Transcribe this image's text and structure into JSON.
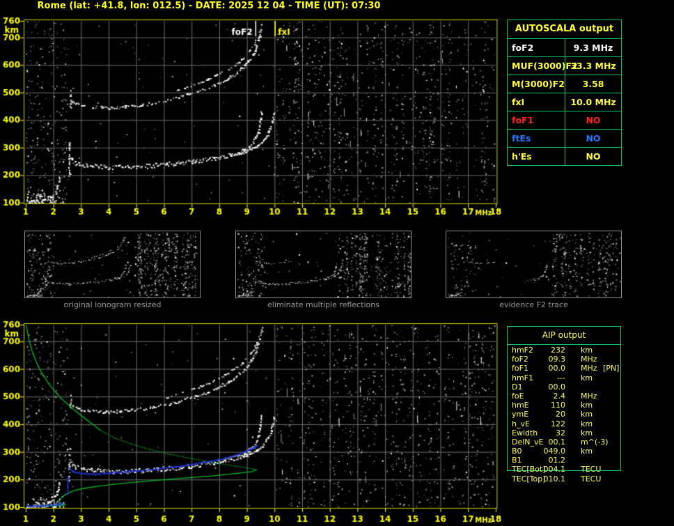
{
  "title": "Rome (lat: +41.8, lon: 012.5) - DATE: 2025 12 04 - TIME (UT): 07:30",
  "colors": {
    "title": "#ffff22",
    "axis_border": "#d8d800",
    "axis_labels": "#ffff00",
    "grid": "#6f6f6f",
    "table_border": "#00cc66",
    "table_yellow": "#ffff44",
    "table_white": "#ffffff",
    "table_red": "#ff2222",
    "table_blue": "#2277ff",
    "aip_text": "#ffff55",
    "profile_green": "#00bb22",
    "restored_blue": "#2233dd",
    "caption_gray": "#9a9a9a",
    "echo_white": "#ffffff"
  },
  "autoscala": {
    "header": "AUTOSCALA output",
    "rows": [
      {
        "label": "foF2",
        "value": "9.3 MHz",
        "color": "#ffffff"
      },
      {
        "label": "MUF(3000)F2",
        "value": "33.3 MHz",
        "color": "#ffff44"
      },
      {
        "label": "M(3000)F2",
        "value": "3.58",
        "color": "#ffff44"
      },
      {
        "label": "fxI",
        "value": "10.0 MHz",
        "color": "#ffff44"
      },
      {
        "label": "foF1",
        "value": "NO",
        "color": "#ff2222"
      },
      {
        "label": "ftEs",
        "value": "NO",
        "color": "#2277ff"
      },
      {
        "label": "h'Es",
        "value": "NO",
        "color": "#ffff44"
      }
    ]
  },
  "aip": {
    "header": "AIP output",
    "rows": [
      {
        "name": "hmF2",
        "value": "232",
        "unit": "km",
        "note": ""
      },
      {
        "name": "foF2",
        "value": "09.3",
        "unit": "MHz",
        "note": ""
      },
      {
        "name": "foF1",
        "value": "00.0",
        "unit": "MHz",
        "note": "[PN]"
      },
      {
        "name": "hmF1",
        "value": "---",
        "unit": "km",
        "note": ""
      },
      {
        "name": "D1",
        "value": "00.0",
        "unit": "",
        "note": ""
      },
      {
        "name": "foE",
        "value": "2.4",
        "unit": "MHz",
        "note": ""
      },
      {
        "name": "hmE",
        "value": "110",
        "unit": "km",
        "note": ""
      },
      {
        "name": "ymE",
        "value": "20",
        "unit": "km",
        "note": ""
      },
      {
        "name": "h_vE",
        "value": "122",
        "unit": "km",
        "note": ""
      },
      {
        "name": "Ewidth",
        "value": "32",
        "unit": "km",
        "note": ""
      },
      {
        "name": "DelN_vE",
        "value": "00.1",
        "unit": "m^(-3)",
        "note": ""
      },
      {
        "name": "B0",
        "value": "049.0",
        "unit": "km",
        "note": ""
      },
      {
        "name": "B1",
        "value": "01.2",
        "unit": "",
        "note": ""
      },
      {
        "name": "TEC[Bot]",
        "value": "004.1",
        "unit": "TECU",
        "note": ""
      },
      {
        "name": "TEC[Top]",
        "value": "010.1",
        "unit": "TECU",
        "note": ""
      }
    ]
  },
  "thumbnails": [
    {
      "caption": "original ionogram resized"
    },
    {
      "caption": "eliminate multiple reflections"
    },
    {
      "caption": "evidence F2 trace"
    }
  ],
  "chart_data": [
    {
      "id": "top-ionogram",
      "type": "scatter",
      "title": "",
      "xlabel": "MHz",
      "ylabel": "km",
      "xlim": [
        1,
        18
      ],
      "ylim": [
        100,
        760
      ],
      "grid": true,
      "xticks": [
        1,
        2,
        3,
        4,
        5,
        6,
        7,
        8,
        9,
        10,
        11,
        12,
        13,
        14,
        15,
        16,
        17,
        18
      ],
      "yticks": [
        100,
        200,
        300,
        400,
        500,
        600,
        700,
        760
      ],
      "markers": [
        {
          "label": "foF2",
          "x": 9.3,
          "color": "#ffffff"
        },
        {
          "label": "fxI",
          "x": 10.0,
          "color": "#ffff00"
        }
      ],
      "echo_traces": [
        {
          "name": "E-region-trace",
          "gap": 0.3,
          "th": 2,
          "points": [
            [
              1.05,
              104
            ],
            [
              1.35,
              108
            ],
            [
              1.65,
              114
            ],
            [
              1.9,
              124
            ],
            [
              2.05,
              140
            ],
            [
              2.15,
              165
            ],
            [
              2.2,
              190
            ]
          ]
        },
        {
          "name": "F-trace-start-spread",
          "gap": 0.3,
          "th": 2,
          "points": [
            [
              2.55,
              200
            ],
            [
              2.56,
              315
            ]
          ]
        },
        {
          "name": "F2-first-hop",
          "gap": 0.04,
          "th": 4,
          "points": [
            [
              2.6,
              262
            ],
            [
              2.8,
              246
            ],
            [
              3.2,
              237
            ],
            [
              3.8,
              232
            ],
            [
              4.6,
              231
            ],
            [
              5.4,
              235
            ],
            [
              6.2,
              242
            ],
            [
              7.0,
              251
            ],
            [
              7.8,
              263
            ],
            [
              8.4,
              276
            ],
            [
              8.9,
              295
            ],
            [
              9.2,
              318
            ],
            [
              9.38,
              352
            ],
            [
              9.48,
              398
            ],
            [
              9.52,
              430
            ]
          ]
        },
        {
          "name": "F2-first-hop-x",
          "gap": 0.18,
          "th": 2,
          "points": [
            [
              8.6,
              276
            ],
            [
              9.0,
              289
            ],
            [
              9.35,
              307
            ],
            [
              9.6,
              328
            ],
            [
              9.8,
              362
            ],
            [
              9.92,
              400
            ],
            [
              9.97,
              430
            ]
          ]
        },
        {
          "name": "F2-second-hop",
          "gap": 0.3,
          "th": 2.5,
          "points": [
            [
              2.62,
              470
            ],
            [
              2.9,
              458
            ],
            [
              3.3,
              450
            ],
            [
              4.0,
              446
            ],
            [
              4.8,
              452
            ],
            [
              5.6,
              463
            ],
            [
              6.4,
              481
            ],
            [
              7.2,
              505
            ],
            [
              7.9,
              532
            ],
            [
              8.5,
              565
            ],
            [
              8.9,
              598
            ],
            [
              9.2,
              638
            ],
            [
              9.4,
              688
            ],
            [
              9.5,
              730
            ]
          ]
        },
        {
          "name": "F2-second-hop-x",
          "gap": 0.55,
          "th": 1.5,
          "points": [
            [
              6.0,
              495
            ],
            [
              6.8,
              520
            ],
            [
              7.6,
              550
            ],
            [
              8.3,
              585
            ],
            [
              8.8,
              622
            ],
            [
              9.2,
              668
            ],
            [
              9.45,
              722
            ],
            [
              9.55,
              755
            ]
          ]
        },
        {
          "name": "second-hop-start-spread",
          "gap": 0.4,
          "th": 2,
          "points": [
            [
              2.6,
              440
            ],
            [
              2.61,
              505
            ]
          ]
        }
      ],
      "e_scatter": {
        "f": [
          1.0,
          2.35
        ],
        "h": [
          100,
          150
        ],
        "count": 70
      },
      "noise": {
        "left_band": {
          "f": [
            1.0,
            2.5
          ],
          "count": 260
        },
        "mid_band": {
          "f": [
            2.55,
            10.0
          ],
          "count": 90
        },
        "right_band": {
          "f": [
            10.05,
            17.95
          ],
          "count": 2600
        },
        "streaks": 28
      }
    },
    {
      "id": "bottom-ionogram",
      "type": "scatter",
      "title": "",
      "xlabel": "MHz",
      "ylabel": "km",
      "xlim": [
        1,
        18
      ],
      "ylim": [
        100,
        760
      ],
      "grid": true,
      "xticks": [
        1,
        2,
        3,
        4,
        5,
        6,
        7,
        8,
        9,
        10,
        11,
        12,
        13,
        14,
        15,
        16,
        17,
        18
      ],
      "yticks": [
        100,
        200,
        300,
        400,
        500,
        600,
        700,
        760
      ],
      "markers": [],
      "echo_traces": [
        {
          "name": "E-region-trace",
          "gap": 0.3,
          "th": 2,
          "points": [
            [
              1.05,
              104
            ],
            [
              1.35,
              108
            ],
            [
              1.65,
              114
            ],
            [
              1.9,
              124
            ],
            [
              2.05,
              140
            ],
            [
              2.15,
              165
            ],
            [
              2.2,
              190
            ]
          ]
        },
        {
          "name": "F-trace-start-spread",
          "gap": 0.3,
          "th": 2,
          "points": [
            [
              2.55,
              200
            ],
            [
              2.56,
              315
            ]
          ]
        },
        {
          "name": "F2-first-hop",
          "gap": 0.04,
          "th": 4,
          "points": [
            [
              2.6,
              262
            ],
            [
              2.8,
              246
            ],
            [
              3.2,
              237
            ],
            [
              3.8,
              232
            ],
            [
              4.6,
              231
            ],
            [
              5.4,
              235
            ],
            [
              6.2,
              242
            ],
            [
              7.0,
              251
            ],
            [
              7.8,
              263
            ],
            [
              8.4,
              276
            ],
            [
              8.9,
              295
            ],
            [
              9.2,
              318
            ],
            [
              9.38,
              352
            ],
            [
              9.48,
              398
            ],
            [
              9.52,
              430
            ]
          ]
        },
        {
          "name": "F2-first-hop-x",
          "gap": 0.18,
          "th": 2,
          "points": [
            [
              8.6,
              276
            ],
            [
              9.0,
              289
            ],
            [
              9.35,
              307
            ],
            [
              9.6,
              328
            ],
            [
              9.8,
              362
            ],
            [
              9.92,
              400
            ],
            [
              9.97,
              430
            ]
          ]
        },
        {
          "name": "F2-second-hop",
          "gap": 0.3,
          "th": 2.5,
          "points": [
            [
              2.62,
              470
            ],
            [
              2.9,
              458
            ],
            [
              3.3,
              450
            ],
            [
              4.0,
              446
            ],
            [
              4.8,
              452
            ],
            [
              5.6,
              463
            ],
            [
              6.4,
              481
            ],
            [
              7.2,
              505
            ],
            [
              7.9,
              532
            ],
            [
              8.5,
              565
            ],
            [
              8.9,
              598
            ],
            [
              9.2,
              638
            ],
            [
              9.4,
              688
            ],
            [
              9.5,
              730
            ]
          ]
        },
        {
          "name": "F2-second-hop-x",
          "gap": 0.55,
          "th": 1.5,
          "points": [
            [
              6.0,
              495
            ],
            [
              6.8,
              520
            ],
            [
              7.6,
              550
            ],
            [
              8.3,
              585
            ],
            [
              8.8,
              622
            ],
            [
              9.2,
              668
            ],
            [
              9.45,
              722
            ],
            [
              9.55,
              755
            ]
          ]
        },
        {
          "name": "second-hop-start-spread",
          "gap": 0.4,
          "th": 2,
          "points": [
            [
              2.6,
              440
            ],
            [
              2.61,
              505
            ]
          ]
        }
      ],
      "e_scatter": {
        "f": [
          1.0,
          2.35
        ],
        "h": [
          100,
          150
        ],
        "count": 70
      },
      "noise": {
        "left_band": {
          "f": [
            1.0,
            2.5
          ],
          "count": 240
        },
        "mid_band": {
          "f": [
            2.55,
            10.0
          ],
          "count": 80
        },
        "right_band": {
          "f": [
            10.05,
            17.95
          ],
          "count": 2400
        },
        "streaks": 26
      },
      "profile": {
        "name": "electron-density-profile",
        "color": "#00bb22",
        "solid_upper": [
          [
            1.02,
            758
          ],
          [
            1.1,
            712
          ],
          [
            1.22,
            668
          ],
          [
            1.38,
            625
          ],
          [
            1.58,
            585
          ],
          [
            1.82,
            548
          ],
          [
            2.1,
            513
          ],
          [
            2.4,
            482
          ],
          [
            2.75,
            452
          ],
          [
            3.1,
            424
          ],
          [
            3.45,
            398
          ],
          [
            3.7,
            378
          ]
        ],
        "dotted": [
          [
            3.7,
            378
          ],
          [
            4.2,
            352
          ],
          [
            4.8,
            330
          ],
          [
            5.5,
            310
          ],
          [
            6.2,
            293
          ],
          [
            7.0,
            277
          ],
          [
            7.8,
            263
          ],
          [
            8.6,
            250
          ],
          [
            9.2,
            240
          ],
          [
            9.33,
            236
          ]
        ],
        "solid_lower": [
          [
            9.33,
            236
          ],
          [
            9.2,
            229
          ],
          [
            8.6,
            222
          ],
          [
            7.6,
            212
          ],
          [
            6.6,
            204
          ],
          [
            5.6,
            196
          ],
          [
            4.6,
            187
          ],
          [
            3.7,
            177
          ],
          [
            3.1,
            168
          ],
          [
            2.7,
            158
          ],
          [
            2.45,
            147
          ],
          [
            2.3,
            135
          ],
          [
            2.22,
            122
          ],
          [
            2.2,
            112
          ],
          [
            2.32,
            108
          ],
          [
            2.45,
            110
          ],
          [
            2.3,
            106
          ],
          [
            1.9,
            105
          ],
          [
            1.4,
            104
          ],
          [
            1.02,
            103
          ]
        ]
      },
      "restored_trace": {
        "name": "restored-F2-trace",
        "color": "#2233dd",
        "segments": [
          [
            [
              1.0,
              105
            ],
            [
              1.4,
              106
            ],
            [
              1.8,
              108
            ],
            [
              2.15,
              112
            ],
            [
              2.32,
              115
            ]
          ],
          [
            [
              2.5,
              150
            ],
            [
              2.5,
              212
            ]
          ],
          [
            [
              2.55,
              242
            ],
            [
              2.7,
              231
            ],
            [
              3.0,
              223
            ],
            [
              3.5,
              221
            ],
            [
              4.0,
              225
            ],
            [
              4.6,
              230
            ],
            [
              5.2,
              235
            ],
            [
              5.8,
              241
            ],
            [
              6.4,
              248
            ],
            [
              7.0,
              257
            ],
            [
              7.6,
              267
            ],
            [
              8.1,
              277
            ],
            [
              8.6,
              291
            ],
            [
              9.0,
              307
            ],
            [
              9.25,
              318
            ],
            [
              9.35,
              324
            ]
          ]
        ]
      }
    }
  ]
}
